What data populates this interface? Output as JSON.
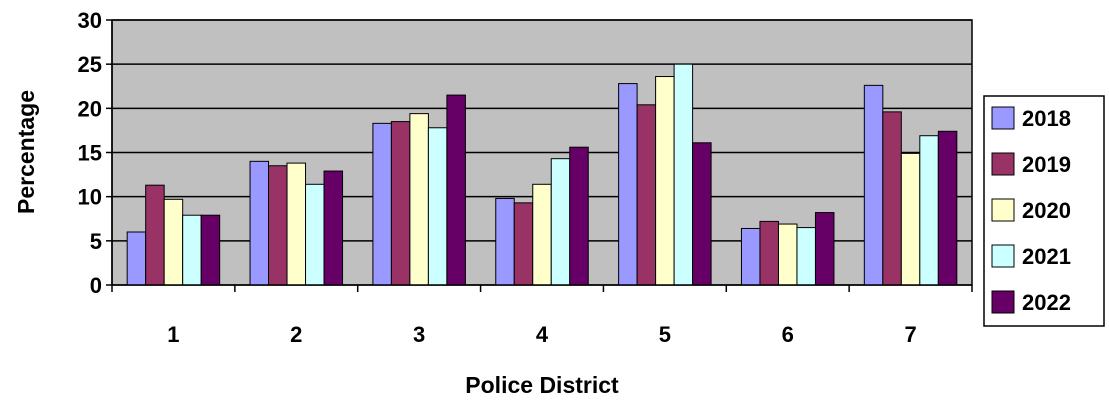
{
  "chart_data": {
    "type": "bar",
    "categories": [
      "1",
      "2",
      "3",
      "4",
      "5",
      "6",
      "7"
    ],
    "series": [
      {
        "name": "2018",
        "color": "#9999ff",
        "values": [
          6.0,
          14.0,
          18.3,
          9.8,
          22.8,
          6.4,
          22.6
        ]
      },
      {
        "name": "2019",
        "color": "#993366",
        "values": [
          11.3,
          13.5,
          18.5,
          9.3,
          20.4,
          7.2,
          19.6
        ]
      },
      {
        "name": "2020",
        "color": "#ffffcc",
        "values": [
          9.7,
          13.8,
          19.4,
          11.4,
          23.6,
          6.9,
          14.9
        ]
      },
      {
        "name": "2021",
        "color": "#ccffff",
        "values": [
          7.9,
          11.4,
          17.8,
          14.3,
          25.0,
          6.5,
          16.9
        ]
      },
      {
        "name": "2022",
        "color": "#660066",
        "values": [
          7.9,
          12.9,
          21.5,
          15.6,
          16.1,
          8.2,
          17.4
        ]
      }
    ],
    "xlabel": "Police District",
    "ylabel": "Percentage",
    "ylim": [
      0,
      30
    ],
    "yticks": [
      0,
      5,
      10,
      15,
      20,
      25,
      30
    ],
    "grid": true,
    "plot_background": "#c0c0c0",
    "legend_position": "right"
  }
}
